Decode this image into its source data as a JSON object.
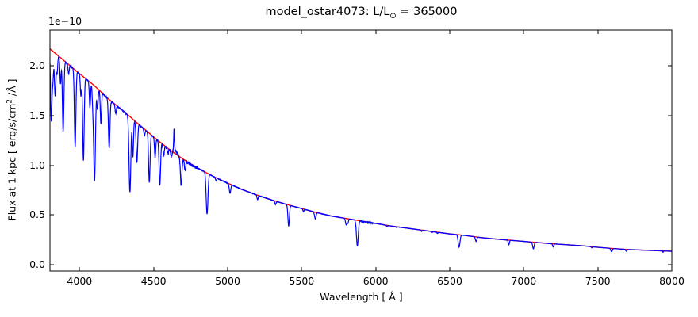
{
  "chart_data": {
    "type": "line",
    "title": "model_ostar4073: L/L⊙ = 365000",
    "title_parts": {
      "prefix": "model_ostar4073: L/L",
      "sun_symbol": "⊙",
      "suffix": " = 365000"
    },
    "xlabel": "Wavelength [ Å ]",
    "ylabel": "Flux at 1 kpc [ erg/s/cm² /Å ]",
    "ylabel_parts": {
      "prefix": "Flux at 1 kpc [ erg/s/cm",
      "sup": "2",
      "suffix": " /Å ]"
    },
    "y_offset_text": "1e−10",
    "grid": false,
    "legend": null,
    "colors": {
      "spectrum": "#0000ff",
      "continuum": "#ff0000",
      "axes": "#000000",
      "background": "#ffffff"
    },
    "x_axis": {
      "min": 3800,
      "max": 8000,
      "tick_values": [
        4000,
        4500,
        5000,
        5500,
        6000,
        6500,
        7000,
        7500,
        8000
      ],
      "tick_labels": [
        "4000",
        "4500",
        "5000",
        "5500",
        "6000",
        "6500",
        "7000",
        "7500",
        "8000"
      ],
      "ticks_in": true
    },
    "y_axis": {
      "display_min": -0.064,
      "display_max": 2.36,
      "unit_scale": "1e-10",
      "tick_values": [
        0.0,
        0.5,
        1.0,
        1.5,
        2.0
      ],
      "tick_labels": [
        "0.0",
        "0.5",
        "1.0",
        "1.5",
        "2.0"
      ],
      "ticks_in": true
    },
    "series": [
      {
        "name": "continuum_fit",
        "color": "#ff0000",
        "type": "smooth_curve",
        "wavelength": [
          3800,
          3900,
          4000,
          4100,
          4200,
          4300,
          4400,
          4500,
          4600,
          4700,
          4800,
          4900,
          5000,
          5100,
          5200,
          5300,
          5400,
          5500,
          5600,
          5700,
          5800,
          5900,
          6000,
          6100,
          6200,
          6300,
          6400,
          6500,
          6600,
          6700,
          6800,
          6900,
          7000,
          7100,
          7200,
          7300,
          7400,
          7500,
          7600,
          7700,
          7800,
          7900,
          8000
        ],
        "flux_1e10": [
          2.17,
          2.045,
          1.92,
          1.8,
          1.66,
          1.54,
          1.41,
          1.285,
          1.165,
          1.06,
          0.97,
          0.89,
          0.82,
          0.755,
          0.7,
          0.65,
          0.605,
          0.565,
          0.525,
          0.49,
          0.465,
          0.44,
          0.415,
          0.39,
          0.37,
          0.35,
          0.33,
          0.31,
          0.295,
          0.275,
          0.26,
          0.247,
          0.235,
          0.222,
          0.21,
          0.2,
          0.19,
          0.175,
          0.163,
          0.153,
          0.147,
          0.141,
          0.135
        ]
      },
      {
        "name": "model_spectrum",
        "color": "#0000ff",
        "type": "spectrum",
        "continuum_ref": "continuum_fit",
        "absorption_lines_wl_tip_sigma": [
          [
            3809,
            1.45,
            5
          ],
          [
            3820,
            1.88,
            4
          ],
          [
            3835,
            1.7,
            5
          ],
          [
            3848,
            1.93,
            4
          ],
          [
            3871,
            1.82,
            4
          ],
          [
            3889,
            1.34,
            5
          ],
          [
            3926,
            1.92,
            4
          ],
          [
            3970,
            1.19,
            5
          ],
          [
            4009,
            1.7,
            4
          ],
          [
            4026,
            1.05,
            5
          ],
          [
            4070,
            1.58,
            4
          ],
          [
            4089,
            1.65,
            4
          ],
          [
            4101,
            0.84,
            6
          ],
          [
            4121,
            1.56,
            4
          ],
          [
            4144,
            1.42,
            4
          ],
          [
            4200,
            1.17,
            5
          ],
          [
            4244,
            1.52,
            4
          ],
          [
            4340,
            0.73,
            6
          ],
          [
            4360,
            1.08,
            4
          ],
          [
            4387,
            1.03,
            5
          ],
          [
            4438,
            1.3,
            4
          ],
          [
            4471,
            0.83,
            5
          ],
          [
            4510,
            1.08,
            4
          ],
          [
            4542,
            0.8,
            5
          ],
          [
            4568,
            1.1,
            4
          ],
          [
            4596,
            1.12,
            4
          ],
          [
            4620,
            1.08,
            4
          ],
          [
            4686,
            0.8,
            5
          ],
          [
            4713,
            0.95,
            4
          ],
          [
            4861,
            0.51,
            6
          ],
          [
            4922,
            0.845,
            4
          ],
          [
            5016,
            0.72,
            5
          ],
          [
            5202,
            0.655,
            4
          ],
          [
            5323,
            0.605,
            4
          ],
          [
            5412,
            0.39,
            5
          ],
          [
            5512,
            0.536,
            4
          ],
          [
            5592,
            0.46,
            5
          ],
          [
            5696,
            0.49,
            4
          ],
          [
            5801,
            0.4,
            5
          ],
          [
            5812,
            0.42,
            4
          ],
          [
            5876,
            0.19,
            6
          ],
          [
            6077,
            0.385,
            4
          ],
          [
            6141,
            0.375,
            4
          ],
          [
            6310,
            0.335,
            4
          ],
          [
            6381,
            0.325,
            4
          ],
          [
            6417,
            0.315,
            4
          ],
          [
            6563,
            0.175,
            6
          ],
          [
            6678,
            0.235,
            5
          ],
          [
            6899,
            0.2,
            4
          ],
          [
            7065,
            0.16,
            5
          ],
          [
            7199,
            0.178,
            4
          ],
          [
            7460,
            0.17,
            4
          ],
          [
            7593,
            0.13,
            5
          ],
          [
            7693,
            0.135,
            4
          ],
          [
            7940,
            0.125,
            3
          ]
        ],
        "emission_lines_wl_peak_sigma": [
          [
            4638,
            1.33,
            2.5
          ],
          [
            4645,
            1.16,
            12
          ]
        ],
        "noise_regions_from_to_amp": [
          [
            3800,
            4550,
            0.003
          ],
          [
            4550,
            4800,
            0.014
          ],
          [
            4800,
            5850,
            0.0025
          ],
          [
            5850,
            5990,
            0.01
          ],
          [
            5990,
            8000,
            0.0025
          ]
        ]
      }
    ]
  }
}
